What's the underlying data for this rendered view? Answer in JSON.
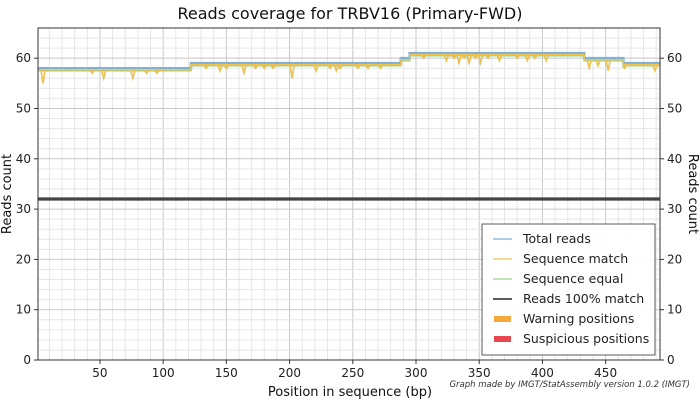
{
  "chart_data": {
    "type": "line",
    "title": "Reads coverage for TRBV16 (Primary-FWD)",
    "xlabel": "Position in sequence (bp)",
    "ylabel": "Reads count",
    "ylabel_right": "Reads count",
    "credit": "Graph made by IMGT/StatAssembly version 1.0.2 (IMGT)",
    "xlim": [
      1,
      493
    ],
    "ylim": [
      0,
      66
    ],
    "xticks": [
      50,
      100,
      150,
      200,
      250,
      300,
      350,
      400,
      450
    ],
    "yticks": [
      0,
      10,
      20,
      30,
      40,
      50,
      60
    ],
    "grid": true,
    "legend_position": "bottom-right",
    "series": [
      {
        "name": "Total reads",
        "color": "#7fb2d6",
        "step_x": [
          1,
          122,
          288,
          295,
          433,
          464,
          493
        ],
        "step_y": [
          58,
          59,
          60,
          61,
          60,
          59,
          59
        ]
      },
      {
        "name": "Sequence match",
        "color": "#f2c14e",
        "step_x": [
          1,
          122,
          288,
          295,
          433,
          464,
          493
        ],
        "step_y": [
          57.7,
          58.7,
          59.7,
          60.7,
          59.7,
          58.7,
          58.7
        ],
        "dips": [
          [
            5,
            55
          ],
          [
            44,
            57
          ],
          [
            53,
            56
          ],
          [
            76,
            56
          ],
          [
            87,
            57
          ],
          [
            89,
            57.5
          ],
          [
            95,
            57
          ],
          [
            99,
            57.5
          ],
          [
            134,
            58
          ],
          [
            145,
            57.5
          ],
          [
            150,
            58
          ],
          [
            164,
            57
          ],
          [
            173,
            58
          ],
          [
            180,
            58
          ],
          [
            187,
            58
          ],
          [
            202,
            56
          ],
          [
            221,
            57.5
          ],
          [
            232,
            58
          ],
          [
            237,
            57.5
          ],
          [
            240,
            58
          ],
          [
            254,
            58
          ],
          [
            262,
            58
          ],
          [
            272,
            58
          ],
          [
            306,
            60
          ],
          [
            324,
            59.5
          ],
          [
            330,
            60
          ],
          [
            334,
            59
          ],
          [
            338,
            60
          ],
          [
            342,
            59
          ],
          [
            347,
            60
          ],
          [
            351,
            59
          ],
          [
            357,
            60
          ],
          [
            366,
            59.5
          ],
          [
            380,
            60
          ],
          [
            388,
            59.5
          ],
          [
            394,
            60
          ],
          [
            403,
            59.5
          ],
          [
            437,
            58
          ],
          [
            444,
            58.5
          ],
          [
            452,
            57.5
          ],
          [
            465,
            58
          ],
          [
            477,
            58.5
          ],
          [
            489,
            57.5
          ]
        ]
      },
      {
        "name": "Sequence equal",
        "color": "#9bd18a",
        "step_x": [
          1,
          122,
          288,
          295,
          433,
          464,
          493
        ],
        "step_y": [
          57.5,
          58.5,
          59.5,
          60.5,
          59.5,
          58.5,
          58.5
        ],
        "dips": [
          [
            5,
            55
          ],
          [
            44,
            57
          ],
          [
            53,
            56
          ],
          [
            76,
            56
          ],
          [
            87,
            57
          ],
          [
            89,
            57.5
          ],
          [
            95,
            57
          ],
          [
            99,
            57.5
          ],
          [
            134,
            58
          ],
          [
            145,
            57.5
          ],
          [
            150,
            58
          ],
          [
            164,
            57
          ],
          [
            173,
            58
          ],
          [
            180,
            58
          ],
          [
            187,
            58
          ],
          [
            202,
            56
          ],
          [
            221,
            57.5
          ],
          [
            232,
            58
          ],
          [
            237,
            57.5
          ],
          [
            240,
            58
          ],
          [
            254,
            58
          ],
          [
            262,
            58
          ],
          [
            272,
            58
          ],
          [
            306,
            60
          ],
          [
            324,
            59.5
          ],
          [
            330,
            60
          ],
          [
            334,
            59
          ],
          [
            338,
            60
          ],
          [
            342,
            59
          ],
          [
            347,
            60
          ],
          [
            351,
            59
          ],
          [
            357,
            60
          ],
          [
            366,
            59.5
          ],
          [
            380,
            60
          ],
          [
            388,
            59.5
          ],
          [
            394,
            60
          ],
          [
            403,
            59.5
          ],
          [
            437,
            58
          ],
          [
            444,
            58.5
          ],
          [
            452,
            57.5
          ],
          [
            465,
            58
          ],
          [
            477,
            58.5
          ],
          [
            489,
            57.5
          ]
        ]
      },
      {
        "name": "Reads 100% match",
        "color": "#444444",
        "step_x": [
          1,
          493
        ],
        "step_y": [
          32,
          32
        ]
      },
      {
        "name": "Warning positions",
        "color": "#f5a93a",
        "legend_style": "bar"
      },
      {
        "name": "Suspicious positions",
        "color": "#e8474f",
        "legend_style": "bar"
      }
    ]
  }
}
